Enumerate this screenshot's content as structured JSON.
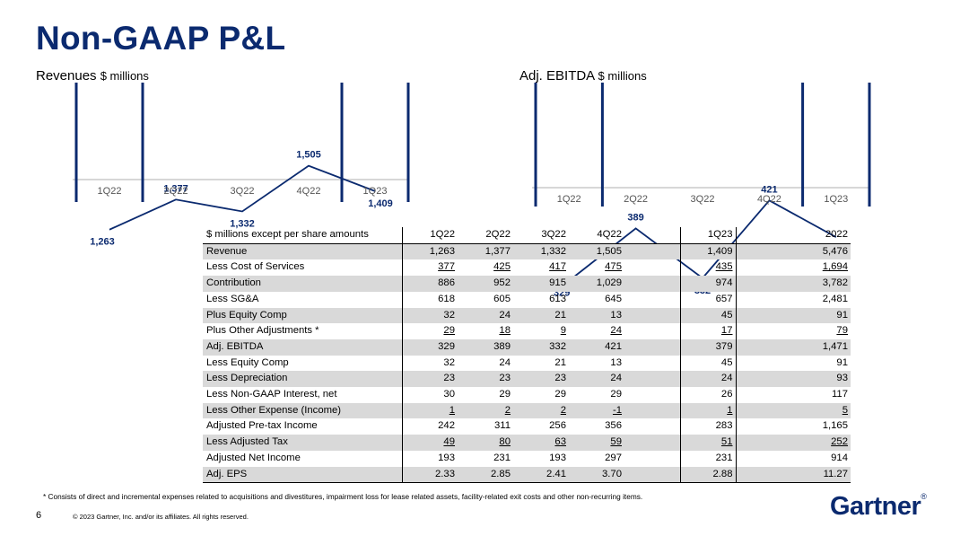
{
  "page": {
    "title": "Non-GAAP P&L",
    "page_number": "6",
    "copyright": "© 2023 Gartner, Inc. and/or its affiliates. All rights reserved.",
    "footnote": "* Consists of direct and incremental expenses related to acquisitions and divestitures, impairment loss for lease related assets, facility-related exit costs and other non-recurring items.",
    "logo_text": "Gartner",
    "logo_mark": "®"
  },
  "colors": {
    "brand": "#0b2a6f",
    "line": "#0b2a6f",
    "shade": "#d9d9d9"
  },
  "chart_data": [
    {
      "type": "line",
      "title": "Revenues",
      "unit": "$ millions",
      "categories": [
        "1Q22",
        "2Q22",
        "3Q22",
        "4Q22",
        "1Q23"
      ],
      "values": [
        1263,
        1377,
        1332,
        1505,
        1409
      ],
      "value_labels": [
        "1,263",
        "1,377",
        "1,332",
        "1,505",
        "1,409"
      ],
      "ylim": [
        1000,
        1800
      ],
      "grid": false
    },
    {
      "type": "line",
      "title": "Adj. EBITDA",
      "unit": "$ millions",
      "categories": [
        "1Q22",
        "2Q22",
        "3Q22",
        "4Q22",
        "1Q23"
      ],
      "values": [
        329,
        389,
        332,
        421,
        379
      ],
      "value_labels": [
        "329",
        "389",
        "332",
        "421",
        "379"
      ],
      "ylim": [
        200,
        550
      ],
      "grid": false
    }
  ],
  "table": {
    "header": [
      "$ millions except per share amounts",
      "1Q22",
      "2Q22",
      "3Q22",
      "4Q22",
      "1Q23",
      "2022"
    ],
    "rows": [
      {
        "label": "Revenue",
        "values": [
          "1,263",
          "1,377",
          "1,332",
          "1,505",
          "1,409",
          "5,476"
        ],
        "underline": false
      },
      {
        "label": "Less Cost of Services",
        "values": [
          "377",
          "425",
          "417",
          "475",
          "435",
          "1,694"
        ],
        "underline": true
      },
      {
        "label": "Contribution",
        "values": [
          "886",
          "952",
          "915",
          "1,029",
          "974",
          "3,782"
        ],
        "underline": false
      },
      {
        "label": "Less SG&A",
        "values": [
          "618",
          "605",
          "613",
          "645",
          "657",
          "2,481"
        ],
        "underline": false
      },
      {
        "label": "Plus Equity Comp",
        "values": [
          "32",
          "24",
          "21",
          "13",
          "45",
          "91"
        ],
        "underline": false
      },
      {
        "label": "Plus Other Adjustments *",
        "values": [
          "29",
          "18",
          "9",
          "24",
          "17",
          "79"
        ],
        "underline": true
      },
      {
        "label": "Adj. EBITDA",
        "values": [
          "329",
          "389",
          "332",
          "421",
          "379",
          "1,471"
        ],
        "underline": false
      },
      {
        "label": "Less Equity Comp",
        "values": [
          "32",
          "24",
          "21",
          "13",
          "45",
          "91"
        ],
        "underline": false
      },
      {
        "label": "Less Depreciation",
        "values": [
          "23",
          "23",
          "23",
          "24",
          "24",
          "93"
        ],
        "underline": false
      },
      {
        "label": "Less Non-GAAP Interest, net",
        "values": [
          "30",
          "29",
          "29",
          "29",
          "26",
          "117"
        ],
        "underline": false
      },
      {
        "label": "Less Other Expense (Income)",
        "values": [
          "1",
          "2",
          "2",
          "-1",
          "1",
          "5"
        ],
        "underline": true
      },
      {
        "label": "Adjusted Pre-tax Income",
        "values": [
          "242",
          "311",
          "256",
          "356",
          "283",
          "1,165"
        ],
        "underline": false
      },
      {
        "label": "Less Adjusted Tax",
        "values": [
          "49",
          "80",
          "63",
          "59",
          "51",
          "252"
        ],
        "underline": true
      },
      {
        "label": "Adjusted Net Income",
        "values": [
          "193",
          "231",
          "193",
          "297",
          "231",
          "914"
        ],
        "underline": false
      },
      {
        "label": "Adj. EPS",
        "values": [
          "2.33",
          "2.85",
          "2.41",
          "3.70",
          "2.88",
          "11.27"
        ],
        "underline": false
      }
    ]
  }
}
